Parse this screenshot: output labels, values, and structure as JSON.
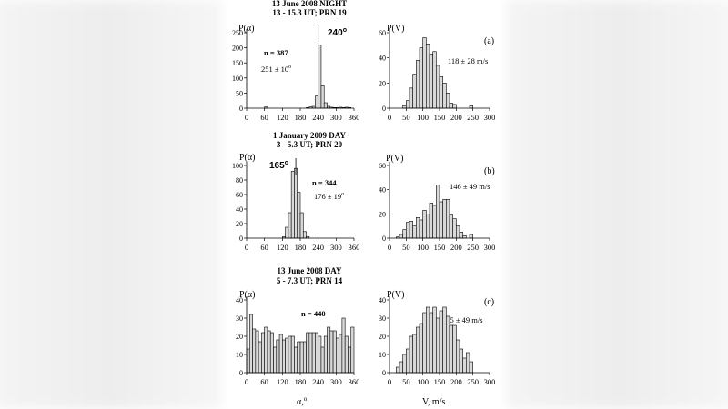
{
  "chart_data": [
    {
      "type": "bar",
      "panel": "a-left",
      "title_line1": "13 June 2008 NIGHT",
      "title_line2": "13 - 15.3 UT; PRN 19",
      "ylabel": "P(α)",
      "ylim": [
        0,
        250
      ],
      "yticks": [
        "0",
        "50",
        "100",
        "150",
        "200",
        "250"
      ],
      "xlim": [
        0,
        360
      ],
      "xticks": [
        "0",
        "60",
        "120",
        "180",
        "240",
        "300",
        "360"
      ],
      "bin_width": 10,
      "x": [
        60,
        200,
        210,
        220,
        230,
        240,
        250,
        260,
        270,
        280,
        290,
        300,
        310,
        320,
        330,
        340
      ],
      "values": [
        4,
        2,
        4,
        6,
        40,
        210,
        74,
        18,
        6,
        3,
        2,
        2,
        3,
        2,
        3,
        2
      ],
      "annotations": {
        "n": "n = 387",
        "mean": "251 ± 10",
        "mean_unit": "o",
        "peak": "240",
        "peak_unit": "o"
      },
      "peak_marker": 240
    },
    {
      "type": "bar",
      "panel": "a-right",
      "ylabel": "P(V)",
      "ylim": [
        0,
        60
      ],
      "yticks": [
        "0",
        "20",
        "40",
        "60"
      ],
      "xlim": [
        0,
        300
      ],
      "xticks": [
        "0",
        "50",
        "100",
        "150",
        "200",
        "250",
        "300"
      ],
      "bin_width": 10,
      "x": [
        40,
        50,
        60,
        70,
        80,
        90,
        100,
        110,
        120,
        130,
        140,
        150,
        160,
        170,
        180,
        190,
        240
      ],
      "values": [
        2,
        6,
        16,
        27,
        38,
        48,
        56,
        51,
        43,
        45,
        34,
        25,
        20,
        12,
        4,
        3,
        2
      ],
      "annotations": {
        "label": "(a)",
        "mean": "118 ± 28 m/s"
      }
    },
    {
      "type": "bar",
      "panel": "b-left",
      "title_line1": "1 January 2009  DAY",
      "title_line2": "3 - 5.3 UT; PRN 20",
      "ylabel": "P(α)",
      "ylim": [
        0,
        100
      ],
      "yticks": [
        "0",
        "20",
        "40",
        "60",
        "80",
        "100"
      ],
      "xlim": [
        0,
        360
      ],
      "xticks": [
        "0",
        "60",
        "120",
        "180",
        "240",
        "300",
        "360"
      ],
      "bin_width": 10,
      "x": [
        120,
        130,
        140,
        150,
        160,
        170,
        180,
        190,
        200
      ],
      "values": [
        2,
        15,
        35,
        92,
        96,
        63,
        35,
        9,
        2
      ],
      "annotations": {
        "n": "n = 344",
        "mean": "176 ± 19",
        "mean_unit": "o",
        "peak": "165",
        "peak_unit": "o"
      },
      "peak_marker": 165
    },
    {
      "type": "bar",
      "panel": "b-right",
      "ylabel": "P(V)",
      "ylim": [
        0,
        60
      ],
      "yticks": [
        "0",
        "20",
        "40",
        "60"
      ],
      "xlim": [
        0,
        300
      ],
      "xticks": [
        "0",
        "50",
        "100",
        "150",
        "200",
        "250",
        "300"
      ],
      "bin_width": 10,
      "x": [
        20,
        30,
        40,
        50,
        60,
        70,
        80,
        90,
        100,
        110,
        120,
        130,
        140,
        150,
        160,
        170,
        180,
        190,
        200,
        210,
        220,
        240
      ],
      "values": [
        1,
        3,
        7,
        13,
        14,
        10,
        17,
        15,
        23,
        20,
        29,
        27,
        44,
        30,
        32,
        32,
        19,
        16,
        10,
        5,
        2,
        3
      ],
      "annotations": {
        "label": "(b)",
        "mean": "146 ± 49 m/s"
      }
    },
    {
      "type": "bar",
      "panel": "c-left",
      "title_line1": "13 June 2008 DAY",
      "title_line2": "5 - 7.3 UT; PRN 14",
      "ylabel": "P(α)",
      "ylim": [
        0,
        40
      ],
      "yticks": [
        "0",
        "10",
        "20",
        "30",
        "40"
      ],
      "xlim": [
        0,
        360
      ],
      "xticks": [
        "0",
        "60",
        "120",
        "180",
        "240",
        "300",
        "360"
      ],
      "xlabel": "α,",
      "xlabel_unit": "o",
      "bin_width": 10,
      "x": [
        0,
        10,
        20,
        30,
        40,
        50,
        60,
        70,
        80,
        90,
        100,
        110,
        120,
        130,
        140,
        150,
        160,
        170,
        180,
        190,
        200,
        210,
        220,
        230,
        240,
        250,
        260,
        270,
        280,
        290,
        300,
        310,
        320,
        330,
        340,
        350
      ],
      "values": [
        13,
        32,
        24,
        23,
        17,
        22,
        25,
        23,
        22,
        14,
        18,
        21,
        18,
        19,
        20,
        20,
        14,
        17,
        17,
        17,
        22,
        22,
        22,
        22,
        20,
        14,
        20,
        25,
        23,
        23,
        19,
        21,
        30,
        20,
        14,
        25
      ],
      "annotations": {
        "n": "n = 440"
      }
    },
    {
      "type": "bar",
      "panel": "c-right",
      "ylabel": "P(V)",
      "ylim": [
        0,
        40
      ],
      "yticks": [
        "0",
        "10",
        "20",
        "30",
        "40"
      ],
      "xlim": [
        0,
        300
      ],
      "xticks": [
        "0",
        "50",
        "100",
        "150",
        "200",
        "250",
        "300"
      ],
      "xlabel": "V, m/s",
      "bin_width": 10,
      "x": [
        20,
        30,
        40,
        50,
        60,
        70,
        80,
        90,
        100,
        110,
        120,
        130,
        140,
        150,
        160,
        170,
        180,
        190,
        200,
        210,
        220,
        230,
        240
      ],
      "values": [
        3,
        6,
        10,
        13,
        20,
        21,
        25,
        27,
        33,
        36,
        33,
        36,
        30,
        34,
        36,
        31,
        26,
        26,
        18,
        13,
        8,
        11,
        6
      ],
      "annotations": {
        "label": "(c)",
        "mean": "135 ± 49 m/s"
      }
    }
  ]
}
